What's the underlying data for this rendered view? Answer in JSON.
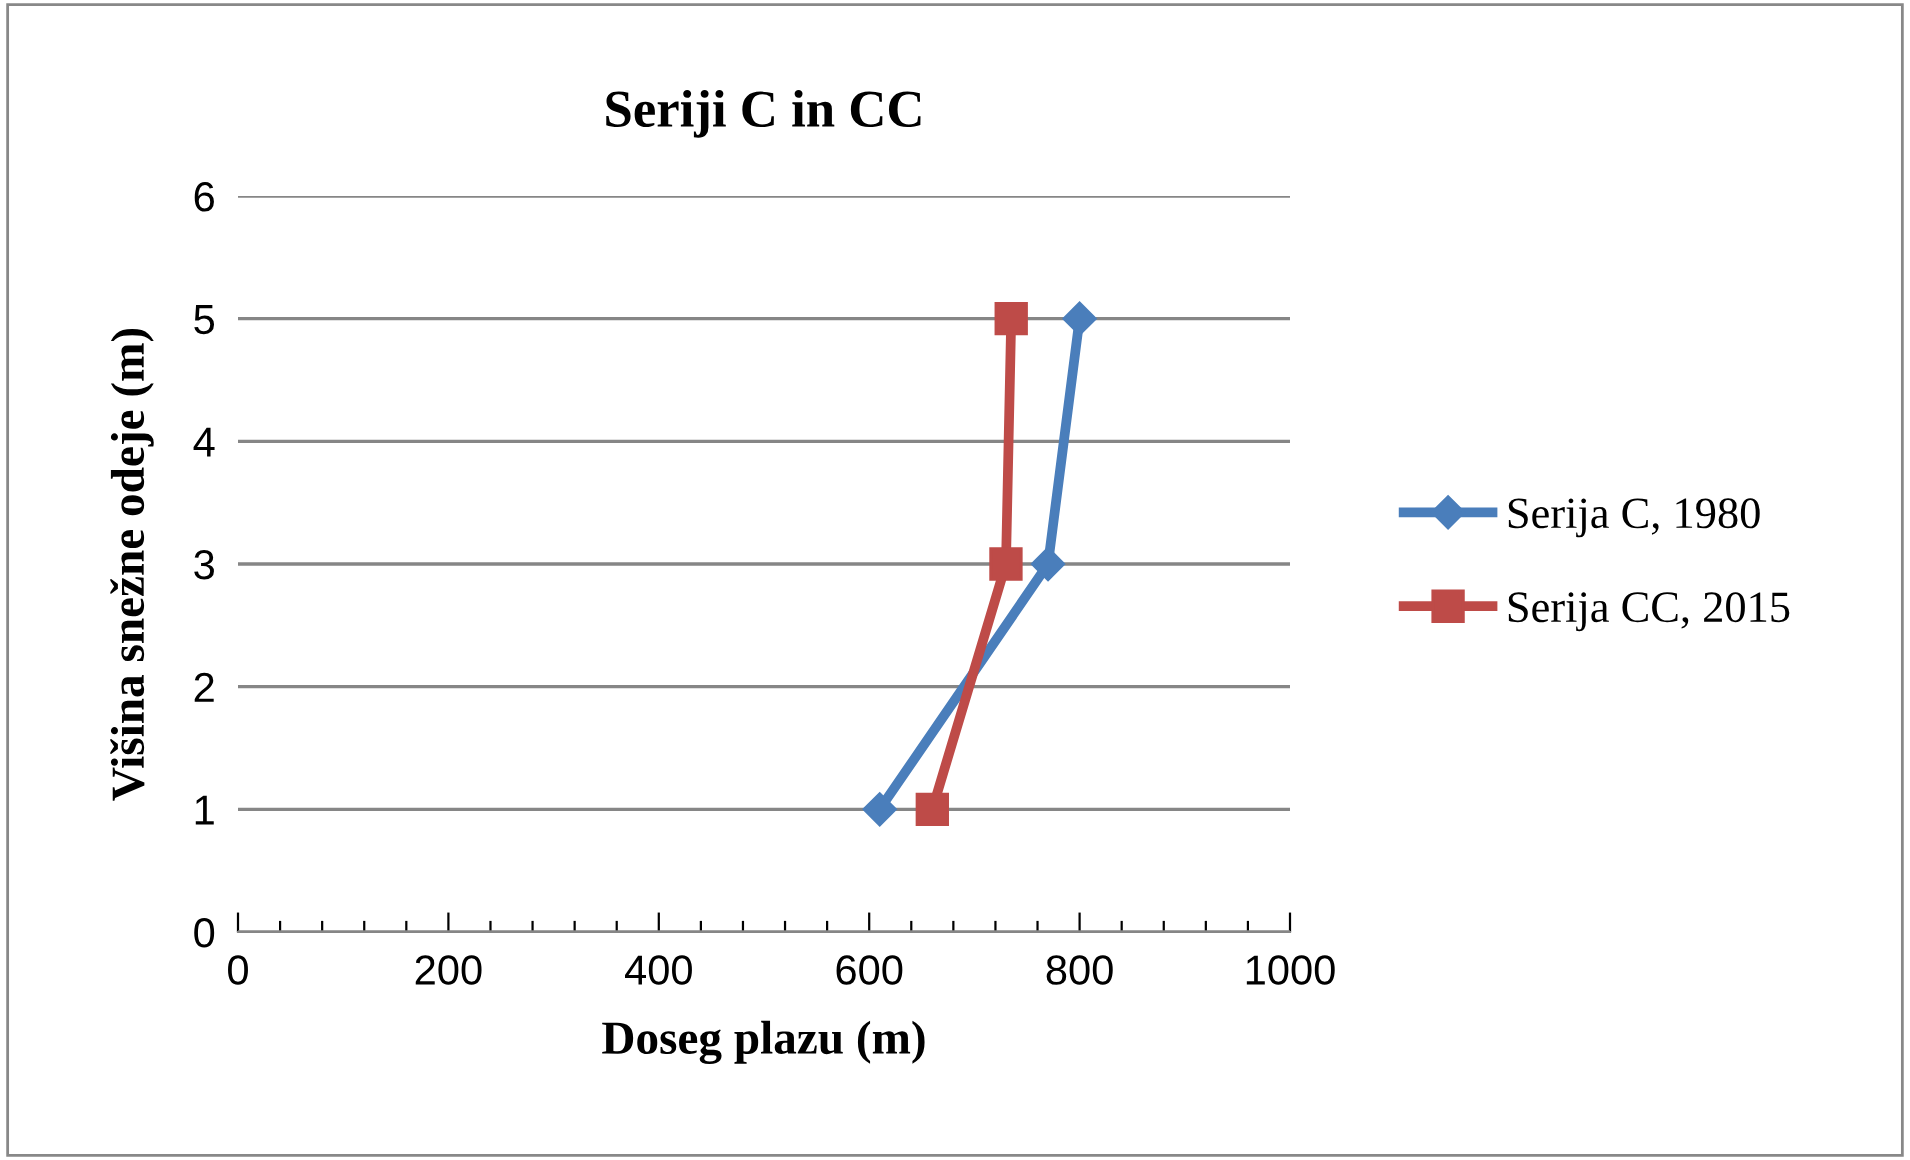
{
  "chart_data": {
    "type": "line",
    "title": "Seriji C in CC",
    "xlabel": "Doseg plazu (m)",
    "ylabel": "Višina snežne odeje (m)",
    "series": [
      {
        "name": "Serija C, 1980",
        "color": "#4a7ebb",
        "marker": "diamond",
        "x": [
          610,
          770,
          800
        ],
        "values": [
          1,
          3,
          5
        ]
      },
      {
        "name": "Serija CC, 2015",
        "color": "#be4b48",
        "marker": "square",
        "x": [
          660,
          730,
          735
        ],
        "values": [
          1,
          3,
          5
        ]
      }
    ],
    "xlim": [
      0,
      1000
    ],
    "xticks": [
      0,
      {
        "value": 40,
        "label": null
      },
      {
        "value": 80,
        "label": null
      },
      {
        "value": 120,
        "label": null
      },
      {
        "value": 160,
        "label": null
      },
      200,
      {
        "value": 240,
        "label": null
      },
      {
        "value": 280,
        "label": null
      },
      {
        "value": 320,
        "label": null
      },
      {
        "value": 360,
        "label": null
      },
      400,
      {
        "value": 440,
        "label": null
      },
      {
        "value": 480,
        "label": null
      },
      {
        "value": 520,
        "label": null
      },
      {
        "value": 560,
        "label": null
      },
      600,
      {
        "value": 640,
        "label": null
      },
      {
        "value": 680,
        "label": null
      },
      {
        "value": 720,
        "label": null
      },
      {
        "value": 760,
        "label": null
      },
      800,
      {
        "value": 840,
        "label": null
      },
      {
        "value": 880,
        "label": null
      },
      {
        "value": 920,
        "label": null
      },
      {
        "value": 960,
        "label": null
      },
      1000
    ],
    "ylim": [
      0,
      6
    ],
    "yticks": [
      0,
      1,
      2,
      3,
      4,
      5,
      6
    ],
    "grid": "y",
    "legend": "right",
    "line_style": "solid"
  }
}
